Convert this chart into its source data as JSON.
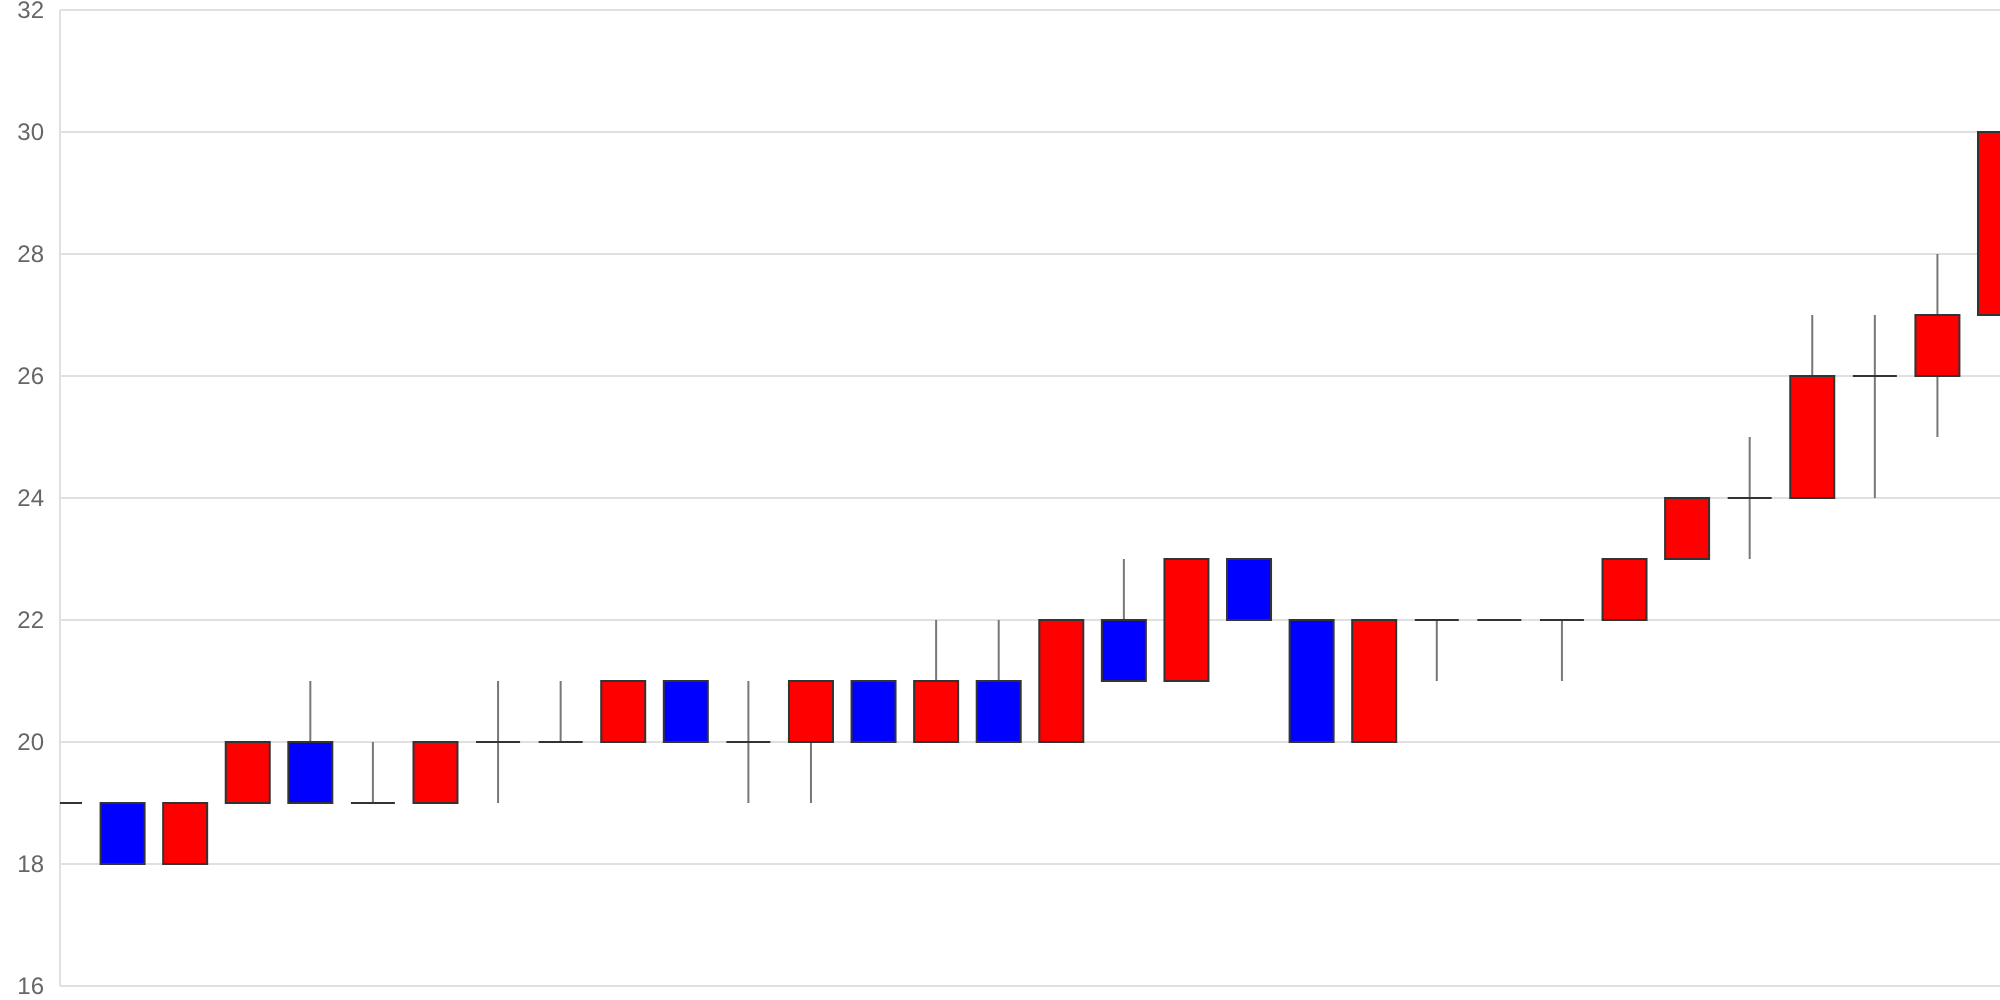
{
  "chart_data": {
    "type": "candlestick",
    "categories": [
      null,
      null,
      null,
      null,
      null,
      null,
      null,
      null,
      null,
      null,
      null,
      null,
      null,
      null,
      null,
      null,
      null,
      null,
      null,
      null,
      null,
      null,
      null,
      null,
      null,
      null,
      null,
      null,
      null,
      null,
      null,
      null
    ],
    "ohlc": [
      [
        19,
        19,
        19,
        19
      ],
      [
        19,
        19,
        18,
        18
      ],
      [
        18,
        19,
        18,
        19
      ],
      [
        19,
        20,
        19,
        20
      ],
      [
        20,
        21,
        19,
        19
      ],
      [
        19,
        20,
        19,
        19
      ],
      [
        19,
        20,
        19,
        20
      ],
      [
        20,
        21,
        19,
        20
      ],
      [
        20,
        21,
        20,
        20
      ],
      [
        20,
        21,
        20,
        21
      ],
      [
        21,
        21,
        20,
        20
      ],
      [
        20,
        21,
        19,
        20
      ],
      [
        20,
        21,
        19,
        21
      ],
      [
        21,
        21,
        20,
        20
      ],
      [
        20,
        22,
        20,
        21
      ],
      [
        21,
        22,
        20,
        20
      ],
      [
        20,
        22,
        20,
        22
      ],
      [
        22,
        23,
        21,
        21
      ],
      [
        21,
        23,
        21,
        23
      ],
      [
        23,
        23,
        22,
        22
      ],
      [
        22,
        22,
        20,
        20
      ],
      [
        20,
        22,
        20,
        22
      ],
      [
        22,
        22,
        21,
        22
      ],
      [
        22,
        22,
        22,
        22
      ],
      [
        22,
        22,
        21,
        22
      ],
      [
        22,
        23,
        22,
        23
      ],
      [
        23,
        24,
        23,
        24
      ],
      [
        24,
        25,
        23,
        24
      ],
      [
        24,
        27,
        24,
        26
      ],
      [
        26,
        27,
        24,
        26
      ],
      [
        26,
        28,
        25,
        27
      ],
      [
        27,
        30,
        27,
        30
      ]
    ],
    "colors": [
      "#333333",
      "#0000ff",
      "#ff0000",
      "#ff0000",
      "#0000ff",
      "#333333",
      "#ff0000",
      "#333333",
      "#333333",
      "#ff0000",
      "#0000ff",
      "#333333",
      "#ff0000",
      "#0000ff",
      "#ff0000",
      "#0000ff",
      "#ff0000",
      "#0000ff",
      "#ff0000",
      "#0000ff",
      "#0000ff",
      "#ff0000",
      "#333333",
      "#333333",
      "#333333",
      "#ff0000",
      "#ff0000",
      "#333333",
      "#ff0000",
      "#333333",
      "#ff0000",
      "#ff0000"
    ],
    "ylim": [
      16,
      32
    ],
    "yticks": [
      16,
      18,
      20,
      22,
      24,
      26,
      28,
      30,
      32
    ],
    "grid": "y",
    "tick_labels": "y"
  }
}
